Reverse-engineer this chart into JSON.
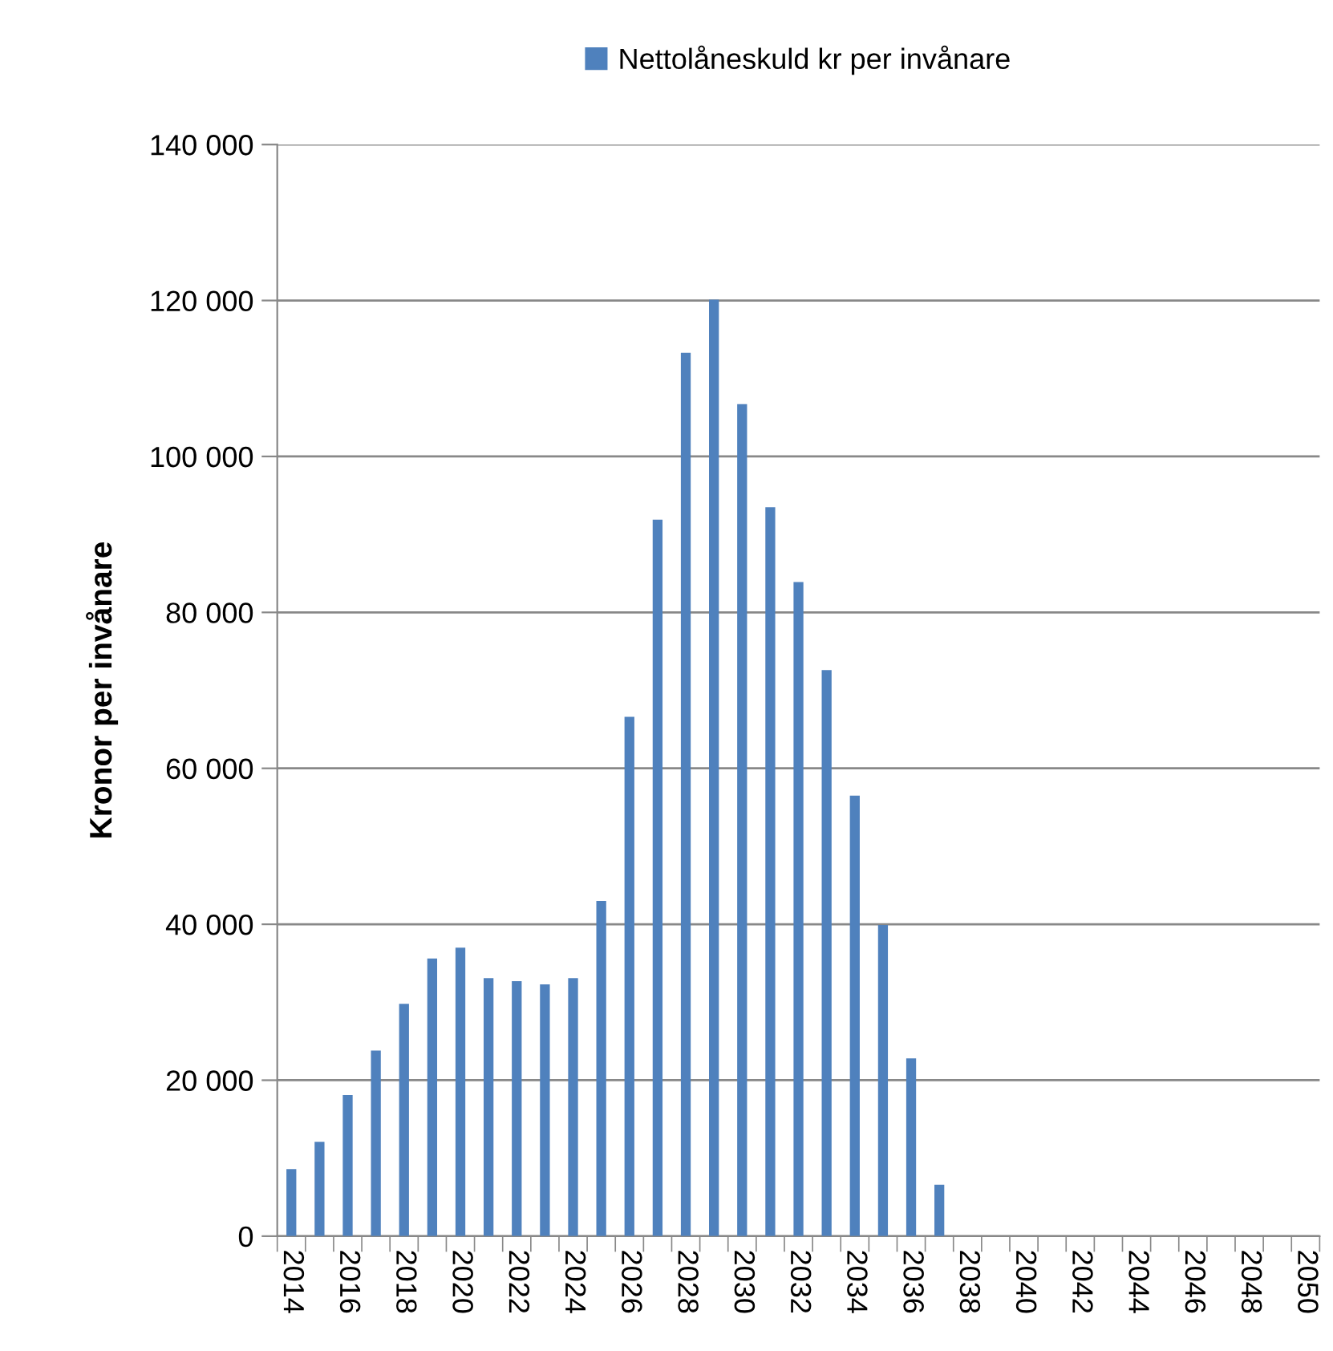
{
  "chart_data": {
    "type": "bar",
    "ylabel": "Kronor per invånare",
    "categories": [
      "2014",
      null,
      "2016",
      null,
      "2018",
      null,
      "2020",
      null,
      "2022",
      null,
      "2024",
      null,
      "2026",
      null,
      "2028",
      null,
      "2030",
      null,
      "2032",
      null,
      "2034",
      null,
      "2036",
      null,
      "2038",
      null,
      "2040",
      null,
      "2042",
      null,
      "2044",
      null,
      "2046",
      null,
      "2048",
      null,
      "2050"
    ],
    "series": [
      {
        "name": "Nettolåneskuld kr per invånare",
        "color": "#4f81bd",
        "values": [
          8600,
          12100,
          18100,
          23800,
          29800,
          35600,
          37000,
          33100,
          32700,
          32300,
          33100,
          43000,
          66600,
          91900,
          113300,
          120100,
          106700,
          93500,
          83900,
          72600,
          56500,
          39900,
          22800,
          6600,
          null,
          null,
          null,
          null,
          null,
          null,
          null,
          null,
          null,
          null,
          null,
          null,
          null
        ]
      }
    ],
    "ylim": [
      0,
      140000
    ],
    "yticks": [
      0,
      {
        "value": 20000,
        "label": "20 000"
      },
      {
        "value": 40000,
        "label": "40 000"
      },
      {
        "value": 60000,
        "label": "60 000"
      },
      {
        "value": 80000,
        "label": "80 000"
      },
      {
        "value": 100000,
        "label": "100 000"
      },
      {
        "value": 120000,
        "label": "120 000"
      },
      {
        "value": 140000,
        "label": "140 000"
      }
    ],
    "grid": "y",
    "legend": "top"
  }
}
